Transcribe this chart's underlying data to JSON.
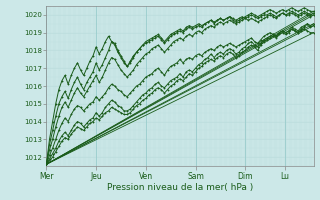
{
  "xlabel": "Pression niveau de la mer( hPa )",
  "ylim": [
    1011.5,
    1020.5
  ],
  "yticks": [
    1012,
    1013,
    1014,
    1015,
    1016,
    1017,
    1018,
    1019,
    1020
  ],
  "bg_color": "#cce8e8",
  "grid_major_color": "#99cccc",
  "grid_minor_color": "#bbdddd",
  "line_color": "#1a5c1a",
  "days": [
    "Mer",
    "Jeu",
    "Ven",
    "Sam",
    "Dim",
    "Lu"
  ],
  "day_tick_positions": [
    0,
    40,
    80,
    120,
    160,
    192
  ],
  "xlim": [
    0,
    215
  ],
  "series": [
    [
      1011.6,
      1011.8,
      1012.0,
      1012.3,
      1012.6,
      1012.9,
      1013.1,
      1013.0,
      1013.3,
      1013.5,
      1013.7,
      1013.6,
      1013.5,
      1013.7,
      1013.9,
      1014.0,
      1014.2,
      1014.1,
      1014.3,
      1014.5,
      1014.6,
      1014.8,
      1014.7,
      1014.6,
      1014.5,
      1014.4,
      1014.4,
      1014.5,
      1014.7,
      1014.9,
      1015.0,
      1015.2,
      1015.3,
      1015.5,
      1015.6,
      1015.8,
      1015.9,
      1015.8,
      1015.6,
      1015.8,
      1016.0,
      1016.1,
      1016.3,
      1016.4,
      1016.3,
      1016.5,
      1016.7,
      1016.6,
      1016.8,
      1017.0,
      1017.1,
      1017.3,
      1017.4,
      1017.5,
      1017.4,
      1017.6,
      1017.7,
      1017.6,
      1017.8,
      1017.9,
      1017.8,
      1017.6,
      1017.7,
      1017.9,
      1018.0,
      1018.2,
      1018.3,
      1018.2,
      1018.0,
      1018.3,
      1018.5,
      1018.6,
      1018.7,
      1018.8,
      1018.7,
      1018.9,
      1019.0,
      1018.9,
      1019.0,
      1019.2,
      1019.1,
      1019.0,
      1019.2,
      1019.3,
      1019.5,
      1019.3,
      1019.4
    ],
    [
      1011.6,
      1011.9,
      1012.2,
      1012.5,
      1012.9,
      1013.2,
      1013.4,
      1013.2,
      1013.5,
      1013.8,
      1014.0,
      1013.9,
      1013.7,
      1013.9,
      1014.1,
      1014.2,
      1014.5,
      1014.3,
      1014.5,
      1014.8,
      1015.0,
      1015.2,
      1015.1,
      1014.9,
      1014.8,
      1014.6,
      1014.6,
      1014.7,
      1014.9,
      1015.1,
      1015.3,
      1015.5,
      1015.6,
      1015.8,
      1015.9,
      1016.1,
      1016.2,
      1016.0,
      1015.9,
      1016.1,
      1016.3,
      1016.4,
      1016.5,
      1016.7,
      1016.5,
      1016.8,
      1016.9,
      1016.8,
      1017.0,
      1017.2,
      1017.3,
      1017.5,
      1017.6,
      1017.8,
      1017.6,
      1017.8,
      1017.9,
      1017.8,
      1018.0,
      1018.1,
      1018.0,
      1017.8,
      1017.9,
      1018.1,
      1018.2,
      1018.4,
      1018.5,
      1018.3,
      1018.2,
      1018.4,
      1018.6,
      1018.7,
      1018.8,
      1018.9,
      1018.8,
      1019.0,
      1019.1,
      1019.0,
      1019.1,
      1019.3,
      1019.2,
      1019.1,
      1019.3,
      1019.4,
      1019.5,
      1019.4,
      1019.5
    ],
    [
      1011.6,
      1012.4,
      1013.0,
      1013.7,
      1014.3,
      1014.8,
      1015.1,
      1014.8,
      1015.2,
      1015.6,
      1015.9,
      1015.6,
      1015.4,
      1015.7,
      1016.0,
      1016.3,
      1016.6,
      1016.2,
      1016.5,
      1016.9,
      1017.3,
      1017.6,
      1017.5,
      1017.2,
      1016.9,
      1016.7,
      1016.5,
      1016.7,
      1016.9,
      1017.2,
      1017.4,
      1017.6,
      1017.8,
      1017.9,
      1018.1,
      1018.2,
      1018.3,
      1018.1,
      1017.9,
      1018.1,
      1018.3,
      1018.5,
      1018.6,
      1018.7,
      1018.6,
      1018.8,
      1018.9,
      1018.8,
      1019.0,
      1019.1,
      1019.0,
      1019.2,
      1019.3,
      1019.4,
      1019.3,
      1019.5,
      1019.6,
      1019.5,
      1019.6,
      1019.7,
      1019.6,
      1019.5,
      1019.6,
      1019.7,
      1019.8,
      1019.7,
      1019.8,
      1019.7,
      1019.6,
      1019.7,
      1019.8,
      1019.9,
      1020.0,
      1019.9,
      1019.8,
      1020.0,
      1020.1,
      1020.0,
      1020.0,
      1020.1,
      1020.0,
      1019.9,
      1020.0,
      1020.1,
      1020.0,
      1019.9,
      1020.0
    ],
    [
      1011.6,
      1013.0,
      1014.0,
      1015.0,
      1015.8,
      1016.3,
      1016.6,
      1016.1,
      1016.6,
      1017.0,
      1017.3,
      1016.9,
      1016.6,
      1017.0,
      1017.4,
      1017.7,
      1018.2,
      1017.8,
      1018.1,
      1018.5,
      1018.8,
      1018.5,
      1018.3,
      1017.9,
      1017.6,
      1017.3,
      1017.1,
      1017.4,
      1017.7,
      1017.9,
      1018.1,
      1018.3,
      1018.5,
      1018.6,
      1018.7,
      1018.8,
      1018.9,
      1018.7,
      1018.5,
      1018.7,
      1018.9,
      1019.0,
      1019.1,
      1019.2,
      1019.1,
      1019.3,
      1019.4,
      1019.3,
      1019.4,
      1019.5,
      1019.4,
      1019.5,
      1019.6,
      1019.7,
      1019.6,
      1019.7,
      1019.8,
      1019.7,
      1019.8,
      1019.9,
      1019.8,
      1019.7,
      1019.8,
      1019.9,
      1019.8,
      1019.9,
      1020.0,
      1019.9,
      1019.8,
      1019.9,
      1020.0,
      1020.0,
      1020.1,
      1020.0,
      1019.9,
      1020.0,
      1020.1,
      1020.0,
      1020.1,
      1020.2,
      1020.1,
      1020.0,
      1020.1,
      1020.2,
      1020.1,
      1020.0,
      1020.1
    ],
    [
      1011.6,
      1012.7,
      1013.5,
      1014.3,
      1015.0,
      1015.4,
      1015.7,
      1015.3,
      1015.8,
      1016.2,
      1016.5,
      1016.1,
      1015.8,
      1016.2,
      1016.5,
      1016.8,
      1017.3,
      1016.9,
      1017.2,
      1017.6,
      1018.0,
      1018.5,
      1018.4,
      1018.0,
      1017.7,
      1017.4,
      1017.1,
      1017.3,
      1017.6,
      1017.9,
      1018.1,
      1018.3,
      1018.4,
      1018.5,
      1018.6,
      1018.7,
      1018.8,
      1018.6,
      1018.4,
      1018.6,
      1018.8,
      1018.9,
      1019.0,
      1019.1,
      1019.0,
      1019.2,
      1019.3,
      1019.2,
      1019.3,
      1019.4,
      1019.3,
      1019.5,
      1019.6,
      1019.7,
      1019.5,
      1019.7,
      1019.8,
      1019.7,
      1019.8,
      1019.9,
      1019.7,
      1019.6,
      1019.7,
      1019.8,
      1019.9,
      1020.0,
      1020.1,
      1020.0,
      1019.9,
      1020.0,
      1020.1,
      1020.2,
      1020.3,
      1020.2,
      1020.1,
      1020.2,
      1020.3,
      1020.2,
      1020.3,
      1020.4,
      1020.3,
      1020.2,
      1020.3,
      1020.4,
      1020.3,
      1020.2,
      1020.2
    ],
    [
      1011.6,
      1012.1,
      1012.5,
      1013.0,
      1013.5,
      1013.9,
      1014.2,
      1014.0,
      1014.4,
      1014.7,
      1014.9,
      1014.8,
      1014.6,
      1014.8,
      1015.0,
      1015.1,
      1015.4,
      1015.2,
      1015.4,
      1015.6,
      1015.9,
      1016.1,
      1016.0,
      1015.8,
      1015.7,
      1015.5,
      1015.4,
      1015.6,
      1015.8,
      1016.0,
      1016.1,
      1016.3,
      1016.5,
      1016.6,
      1016.7,
      1016.9,
      1017.0,
      1016.8,
      1016.6,
      1016.9,
      1017.1,
      1017.2,
      1017.3,
      1017.5,
      1017.3,
      1017.5,
      1017.6,
      1017.5,
      1017.7,
      1017.8,
      1017.7,
      1017.9,
      1018.0,
      1018.1,
      1018.0,
      1018.2,
      1018.3,
      1018.2,
      1018.3,
      1018.4,
      1018.3,
      1018.2,
      1018.3,
      1018.4,
      1018.5,
      1018.6,
      1018.7,
      1018.5,
      1018.4,
      1018.6,
      1018.8,
      1018.9,
      1019.0,
      1018.9,
      1018.8,
      1019.0,
      1019.1,
      1019.0,
      1019.1,
      1019.2,
      1019.1,
      1019.0,
      1019.1,
      1019.2,
      1019.1,
      1019.0,
      1019.0
    ]
  ]
}
